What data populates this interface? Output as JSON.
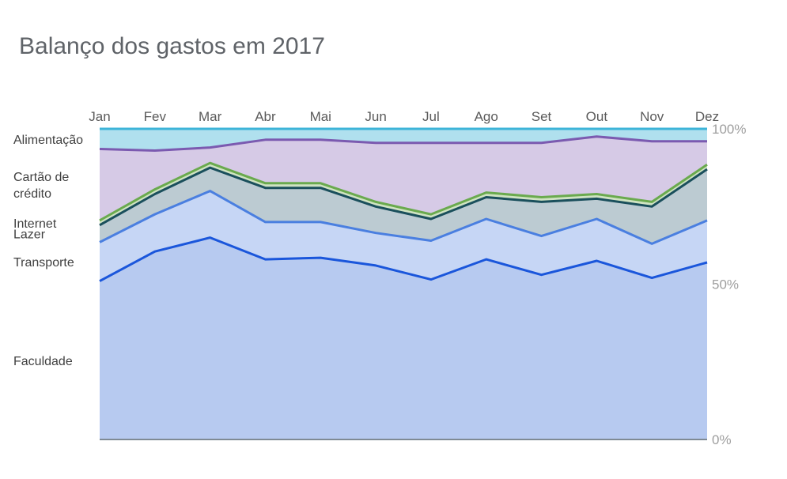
{
  "title": "Balanço dos gastos em 2017",
  "chart_data": {
    "type": "area",
    "stacked": "percent",
    "title": "Balanço dos gastos em 2017",
    "categories": [
      "Jan",
      "Fev",
      "Mar",
      "Abr",
      "Mai",
      "Jun",
      "Jul",
      "Ago",
      "Set",
      "Out",
      "Nov",
      "Dez"
    ],
    "y_ticks": [
      "0%",
      "50%",
      "100%"
    ],
    "ylim": [
      0,
      100
    ],
    "legend_position": "left",
    "grid": false,
    "series": [
      {
        "name": "Faculdade",
        "color": "#1a56db",
        "fill": "#b7caf0",
        "values": [
          51.0,
          60.5,
          65.0,
          58.0,
          58.5,
          56.0,
          51.5,
          58.0,
          53.0,
          57.5,
          52.0,
          57.0
        ]
      },
      {
        "name": "Transporte",
        "color": "#4a7fe0",
        "fill": "#c6d6f5",
        "values": [
          12.5,
          12.0,
          15.0,
          12.0,
          11.5,
          10.5,
          12.5,
          13.0,
          12.5,
          13.5,
          11.0,
          13.5
        ]
      },
      {
        "name": "Lazer",
        "color": "#1a4f5c",
        "fill": "#bccbd2",
        "values": [
          5.5,
          6.5,
          7.5,
          11.0,
          11.0,
          8.5,
          7.0,
          7.0,
          11.0,
          6.5,
          12.0,
          16.5
        ]
      },
      {
        "name": "Internet",
        "color": "#6aaa4e",
        "fill": "#cfe3c2",
        "values": [
          1.5,
          1.5,
          1.5,
          1.5,
          1.5,
          1.5,
          1.5,
          1.5,
          1.5,
          1.5,
          1.5,
          1.5
        ]
      },
      {
        "name": "Cartão de crédito",
        "color": "#7b5ab0",
        "fill": "#d6cae6",
        "values": [
          23.0,
          12.5,
          5.0,
          14.0,
          14.0,
          19.0,
          23.0,
          16.0,
          17.5,
          18.5,
          19.5,
          7.5
        ]
      },
      {
        "name": "Alimentação",
        "color": "#3db4d8",
        "fill": "#b0e0ee",
        "values": [
          6.5,
          7.0,
          6.0,
          3.5,
          3.5,
          4.5,
          4.5,
          4.5,
          4.5,
          2.5,
          4.0,
          4.0
        ]
      }
    ]
  }
}
